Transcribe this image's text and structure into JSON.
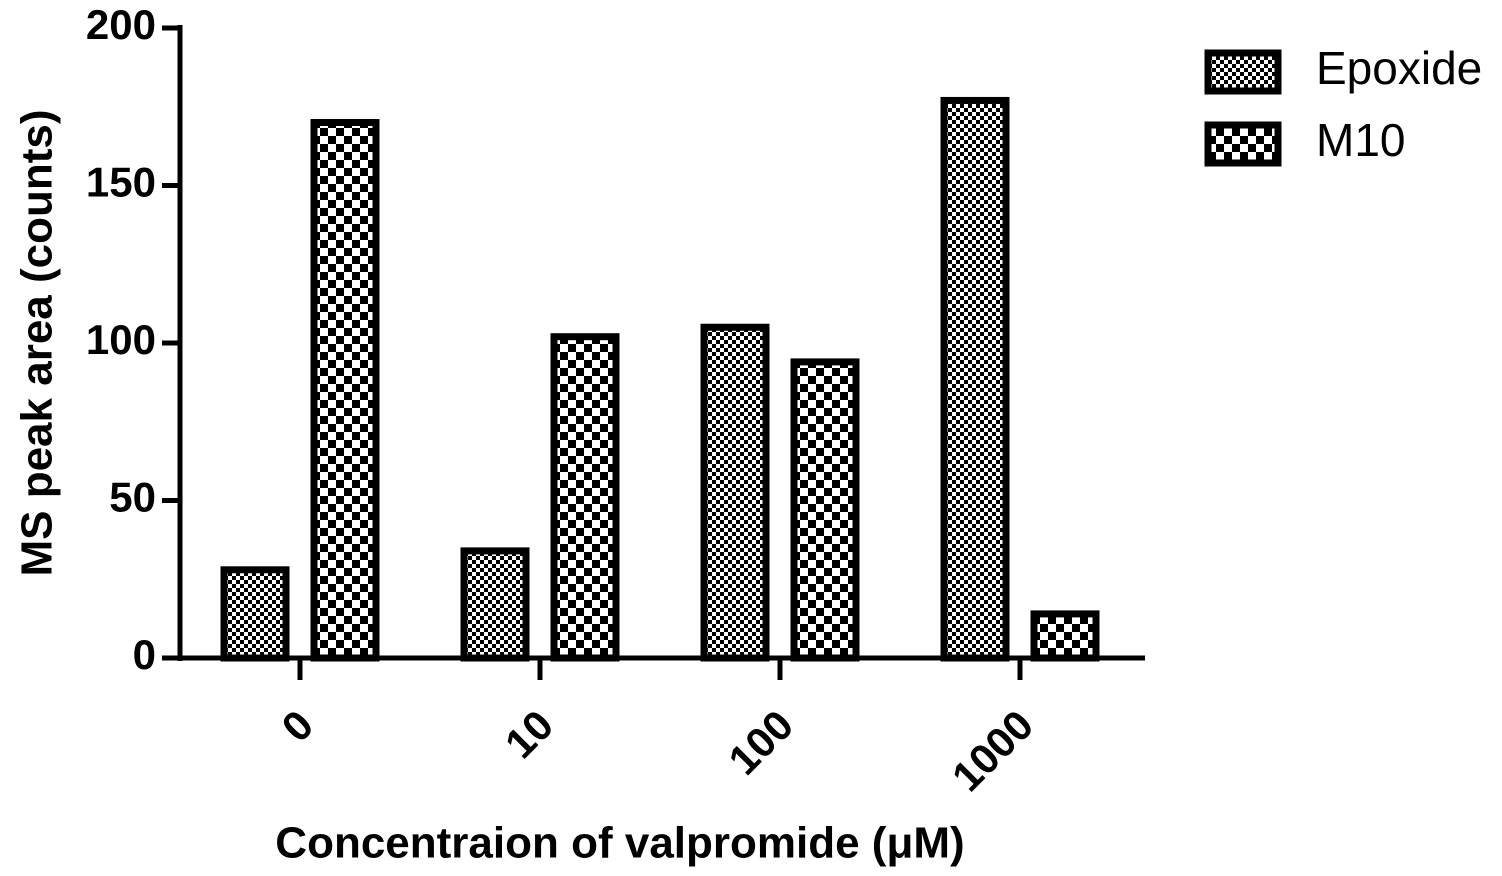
{
  "chart_data": {
    "type": "bar",
    "x_label": "Concentraion of valpromide (μM)",
    "y_label": "MS peak area (counts)",
    "categories": [
      "0",
      "10",
      "100",
      "1000"
    ],
    "series": [
      {
        "name": "Epoxide",
        "color": "#000000",
        "pattern": "fine-checker",
        "values": [
          28,
          34,
          105,
          177
        ]
      },
      {
        "name": "M10",
        "color": "#000000",
        "pattern": "coarse-checker",
        "values": [
          170,
          102,
          94,
          14
        ]
      }
    ],
    "ylim": [
      0,
      200
    ],
    "yticks": [
      0,
      50,
      100,
      150,
      200
    ],
    "legend": "right"
  }
}
